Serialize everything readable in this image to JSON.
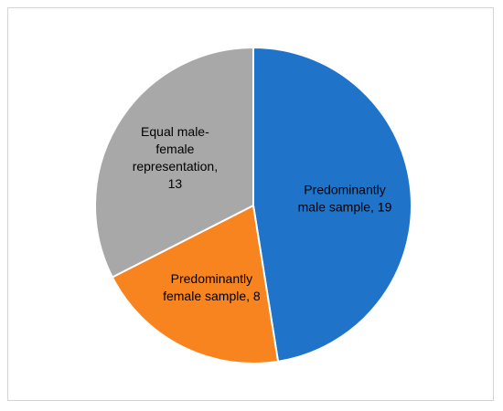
{
  "chart_data": {
    "type": "pie",
    "title": "",
    "slices": [
      {
        "label_lines": [
          "Predominantly",
          "male sample, 19"
        ],
        "value": 19,
        "color": "#1f74c9"
      },
      {
        "label_lines": [
          "Predominantly",
          "female sample, 8"
        ],
        "value": 8,
        "color": "#f7841f"
      },
      {
        "label_lines": [
          "Equal male-",
          "female",
          "representation,",
          "13"
        ],
        "value": 13,
        "color": "#a8a8a8"
      }
    ],
    "legend": "none",
    "start_angle_deg": 0,
    "direction": "clockwise"
  }
}
